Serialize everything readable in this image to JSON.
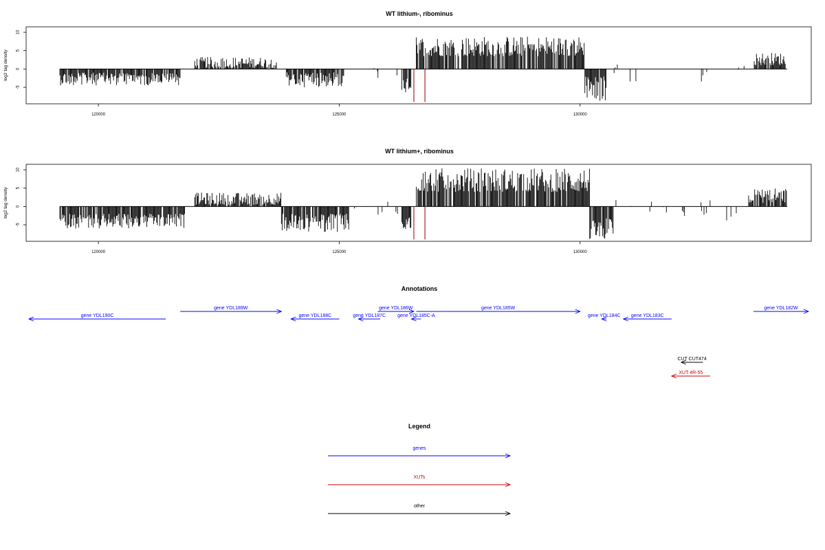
{
  "chart_data": [
    {
      "type": "bar",
      "title": "WT lithium-, ribominus",
      "ylabel": "log2 tag density",
      "xlim": [
        118500,
        134800
      ],
      "ylim": [
        -9.5,
        11.5
      ],
      "x_ticks": [
        120000,
        125000,
        130000
      ],
      "x_tick_labels": [
        "120000",
        "125000",
        "130000"
      ],
      "y_ticks": [
        -5,
        0,
        5,
        10
      ],
      "y_tick_labels": [
        "-5",
        "0",
        "5",
        "10"
      ],
      "segments": [
        {
          "from": 119200,
          "to": 121700,
          "min": -4.5,
          "max": -1.0
        },
        {
          "from": 122000,
          "to": 123700,
          "min": 0.3,
          "max": 3.3
        },
        {
          "from": 123900,
          "to": 125100,
          "min": -5.0,
          "max": -0.8
        },
        {
          "from": 126300,
          "to": 126500,
          "min": -6.5,
          "max": -2.5
        },
        {
          "from": 126600,
          "to": 130100,
          "min": 3.5,
          "max": 9.0
        },
        {
          "from": 130100,
          "to": 130600,
          "min": -9.0,
          "max": -2.0
        },
        {
          "from": 133600,
          "to": 134300,
          "min": 1.0,
          "max": 4.5
        }
      ],
      "sparse": [
        {
          "from": 125700,
          "to": 126300,
          "min": -2.5,
          "max": 1.0,
          "count": 5
        },
        {
          "from": 130600,
          "to": 133600,
          "min": -3.5,
          "max": 1.5,
          "count": 10
        }
      ],
      "highlights": [
        {
          "x": 126550,
          "y": -9.0,
          "color": "#aa2222"
        },
        {
          "x": 126780,
          "y": -9.0,
          "color": "#aa2222"
        }
      ]
    },
    {
      "type": "bar",
      "title": "WT lithium+, ribominus",
      "ylabel": "log2 tag density",
      "xlim": [
        118500,
        134800
      ],
      "ylim": [
        -9.5,
        11.5
      ],
      "x_ticks": [
        120000,
        125000,
        130000
      ],
      "x_tick_labels": [
        "120000",
        "125000",
        "130000"
      ],
      "y_ticks": [
        -5,
        0,
        5,
        10
      ],
      "y_tick_labels": [
        "-5",
        "0",
        "5",
        "10"
      ],
      "segments": [
        {
          "from": 119200,
          "to": 121800,
          "min": -6.0,
          "max": -2.0
        },
        {
          "from": 122000,
          "to": 123800,
          "min": 0.5,
          "max": 3.8
        },
        {
          "from": 123800,
          "to": 125200,
          "min": -7.0,
          "max": -2.0
        },
        {
          "from": 126300,
          "to": 126500,
          "min": -7.0,
          "max": -3.0
        },
        {
          "from": 126600,
          "to": 130200,
          "min": 4.0,
          "max": 10.5
        },
        {
          "from": 130200,
          "to": 130700,
          "min": -9.0,
          "max": -3.0
        },
        {
          "from": 133500,
          "to": 134300,
          "min": 1.0,
          "max": 5.0
        }
      ],
      "sparse": [
        {
          "from": 125200,
          "to": 126300,
          "min": -2.5,
          "max": 1.5,
          "count": 8
        },
        {
          "from": 130700,
          "to": 133500,
          "min": -4.0,
          "max": 2.0,
          "count": 18
        }
      ],
      "highlights": [
        {
          "x": 126550,
          "y": -9.0,
          "color": "#aa2222"
        },
        {
          "x": 126780,
          "y": -9.0,
          "color": "#aa2222"
        }
      ]
    }
  ],
  "annotations": {
    "title": "Annotations",
    "features": [
      {
        "label": "gene YDL190C",
        "start": 118500,
        "end": 121400,
        "strand": "-",
        "row": 2,
        "color": "#0000ff"
      },
      {
        "label": "gene YDL189W",
        "start": 121700,
        "end": 123800,
        "strand": "+",
        "row": 1,
        "color": "#0000ff"
      },
      {
        "label": "gene YDL188C",
        "start": 124000,
        "end": 125000,
        "strand": "-",
        "row": 2,
        "color": "#0000ff"
      },
      {
        "label": "gene YDL187C",
        "start": 125400,
        "end": 125850,
        "strand": "-",
        "row": 2,
        "color": "#0000ff"
      },
      {
        "label": "gene YDL186W",
        "start": 125800,
        "end": 126550,
        "strand": "+",
        "row": 1,
        "color": "#0000ff"
      },
      {
        "label": "gene YDL185C-A",
        "start": 126500,
        "end": 126700,
        "strand": "-",
        "row": 2,
        "color": "#0000ff"
      },
      {
        "label": "gene YDL185W",
        "start": 126600,
        "end": 130000,
        "strand": "+",
        "row": 1,
        "color": "#0000ff"
      },
      {
        "label": "gene YDL184C",
        "start": 130450,
        "end": 130550,
        "strand": "-",
        "row": 2,
        "color": "#0000ff"
      },
      {
        "label": "gene YDL183C",
        "start": 130900,
        "end": 131900,
        "strand": "-",
        "row": 2,
        "color": "#0000ff"
      },
      {
        "label": "gene YDL182W",
        "start": 133600,
        "end": 134950,
        "strand": "+",
        "row": 1,
        "color": "#0000ff"
      },
      {
        "label": "CUT CUT474",
        "start": 132100,
        "end": 132550,
        "strand": "-",
        "row": 4,
        "color": "#000000"
      },
      {
        "label": "XUT 4R-55",
        "start": 131900,
        "end": 132700,
        "strand": "-",
        "row": 5,
        "color": "#cc0000"
      }
    ]
  },
  "legend": {
    "title": "Legend",
    "items": [
      {
        "label": "genes",
        "color": "#0000ff"
      },
      {
        "label": "XUTs",
        "color": "#cc0000"
      },
      {
        "label": "other",
        "color": "#000000"
      }
    ]
  }
}
